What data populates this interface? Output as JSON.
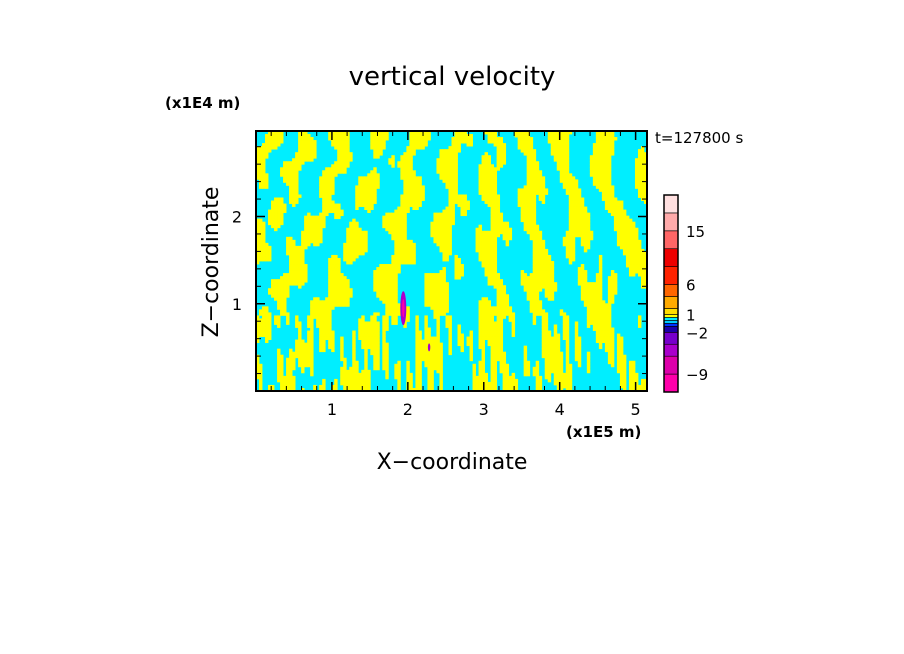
{
  "chart_data": {
    "type": "heatmap",
    "title": "vertical velocity",
    "xlabel": "X−coordinate",
    "ylabel": "Z−coordinate",
    "x_unit": "(x1E5 m)",
    "y_unit": "(x1E4 m)",
    "time_label": "t=127800 s",
    "xlim": [
      0,
      5.15
    ],
    "ylim": [
      0,
      2.98
    ],
    "x_ticks": [
      1,
      2,
      3,
      4,
      5
    ],
    "y_ticks": [
      1,
      2
    ],
    "x_tick_labels": [
      "1",
      "2",
      "3",
      "4",
      "5"
    ],
    "y_tick_labels": [
      "1",
      "2"
    ],
    "grid": false,
    "colorbar": {
      "levels": [
        -12,
        -9,
        -6,
        -4,
        -2,
        -1,
        -0.5,
        0,
        0.5,
        1,
        2,
        4,
        6,
        9,
        12,
        15,
        18,
        21
      ],
      "colors": [
        "#ff00aa",
        "#dd00aa",
        "#aa00cc",
        "#7700cc",
        "#1a00aa",
        "#0033ff",
        "#00ccff",
        "#00eeff",
        "#ffff00",
        "#ffdd00",
        "#ffaa00",
        "#ff6600",
        "#ff2200",
        "#ee0000",
        "#ff6666",
        "#ffaaaa",
        "#ffe0e0",
        "#fff6f6"
      ],
      "tick_labels": [
        "15",
        "6",
        "1",
        "−2",
        "−9"
      ],
      "tick_values": [
        15,
        6,
        1,
        -2,
        -9
      ]
    },
    "field_colors": {
      "updraft": "#ffff00",
      "downdraft": "#00eeff",
      "strong_downdraft": "#aa00cc",
      "core": "#ff00aa"
    }
  }
}
